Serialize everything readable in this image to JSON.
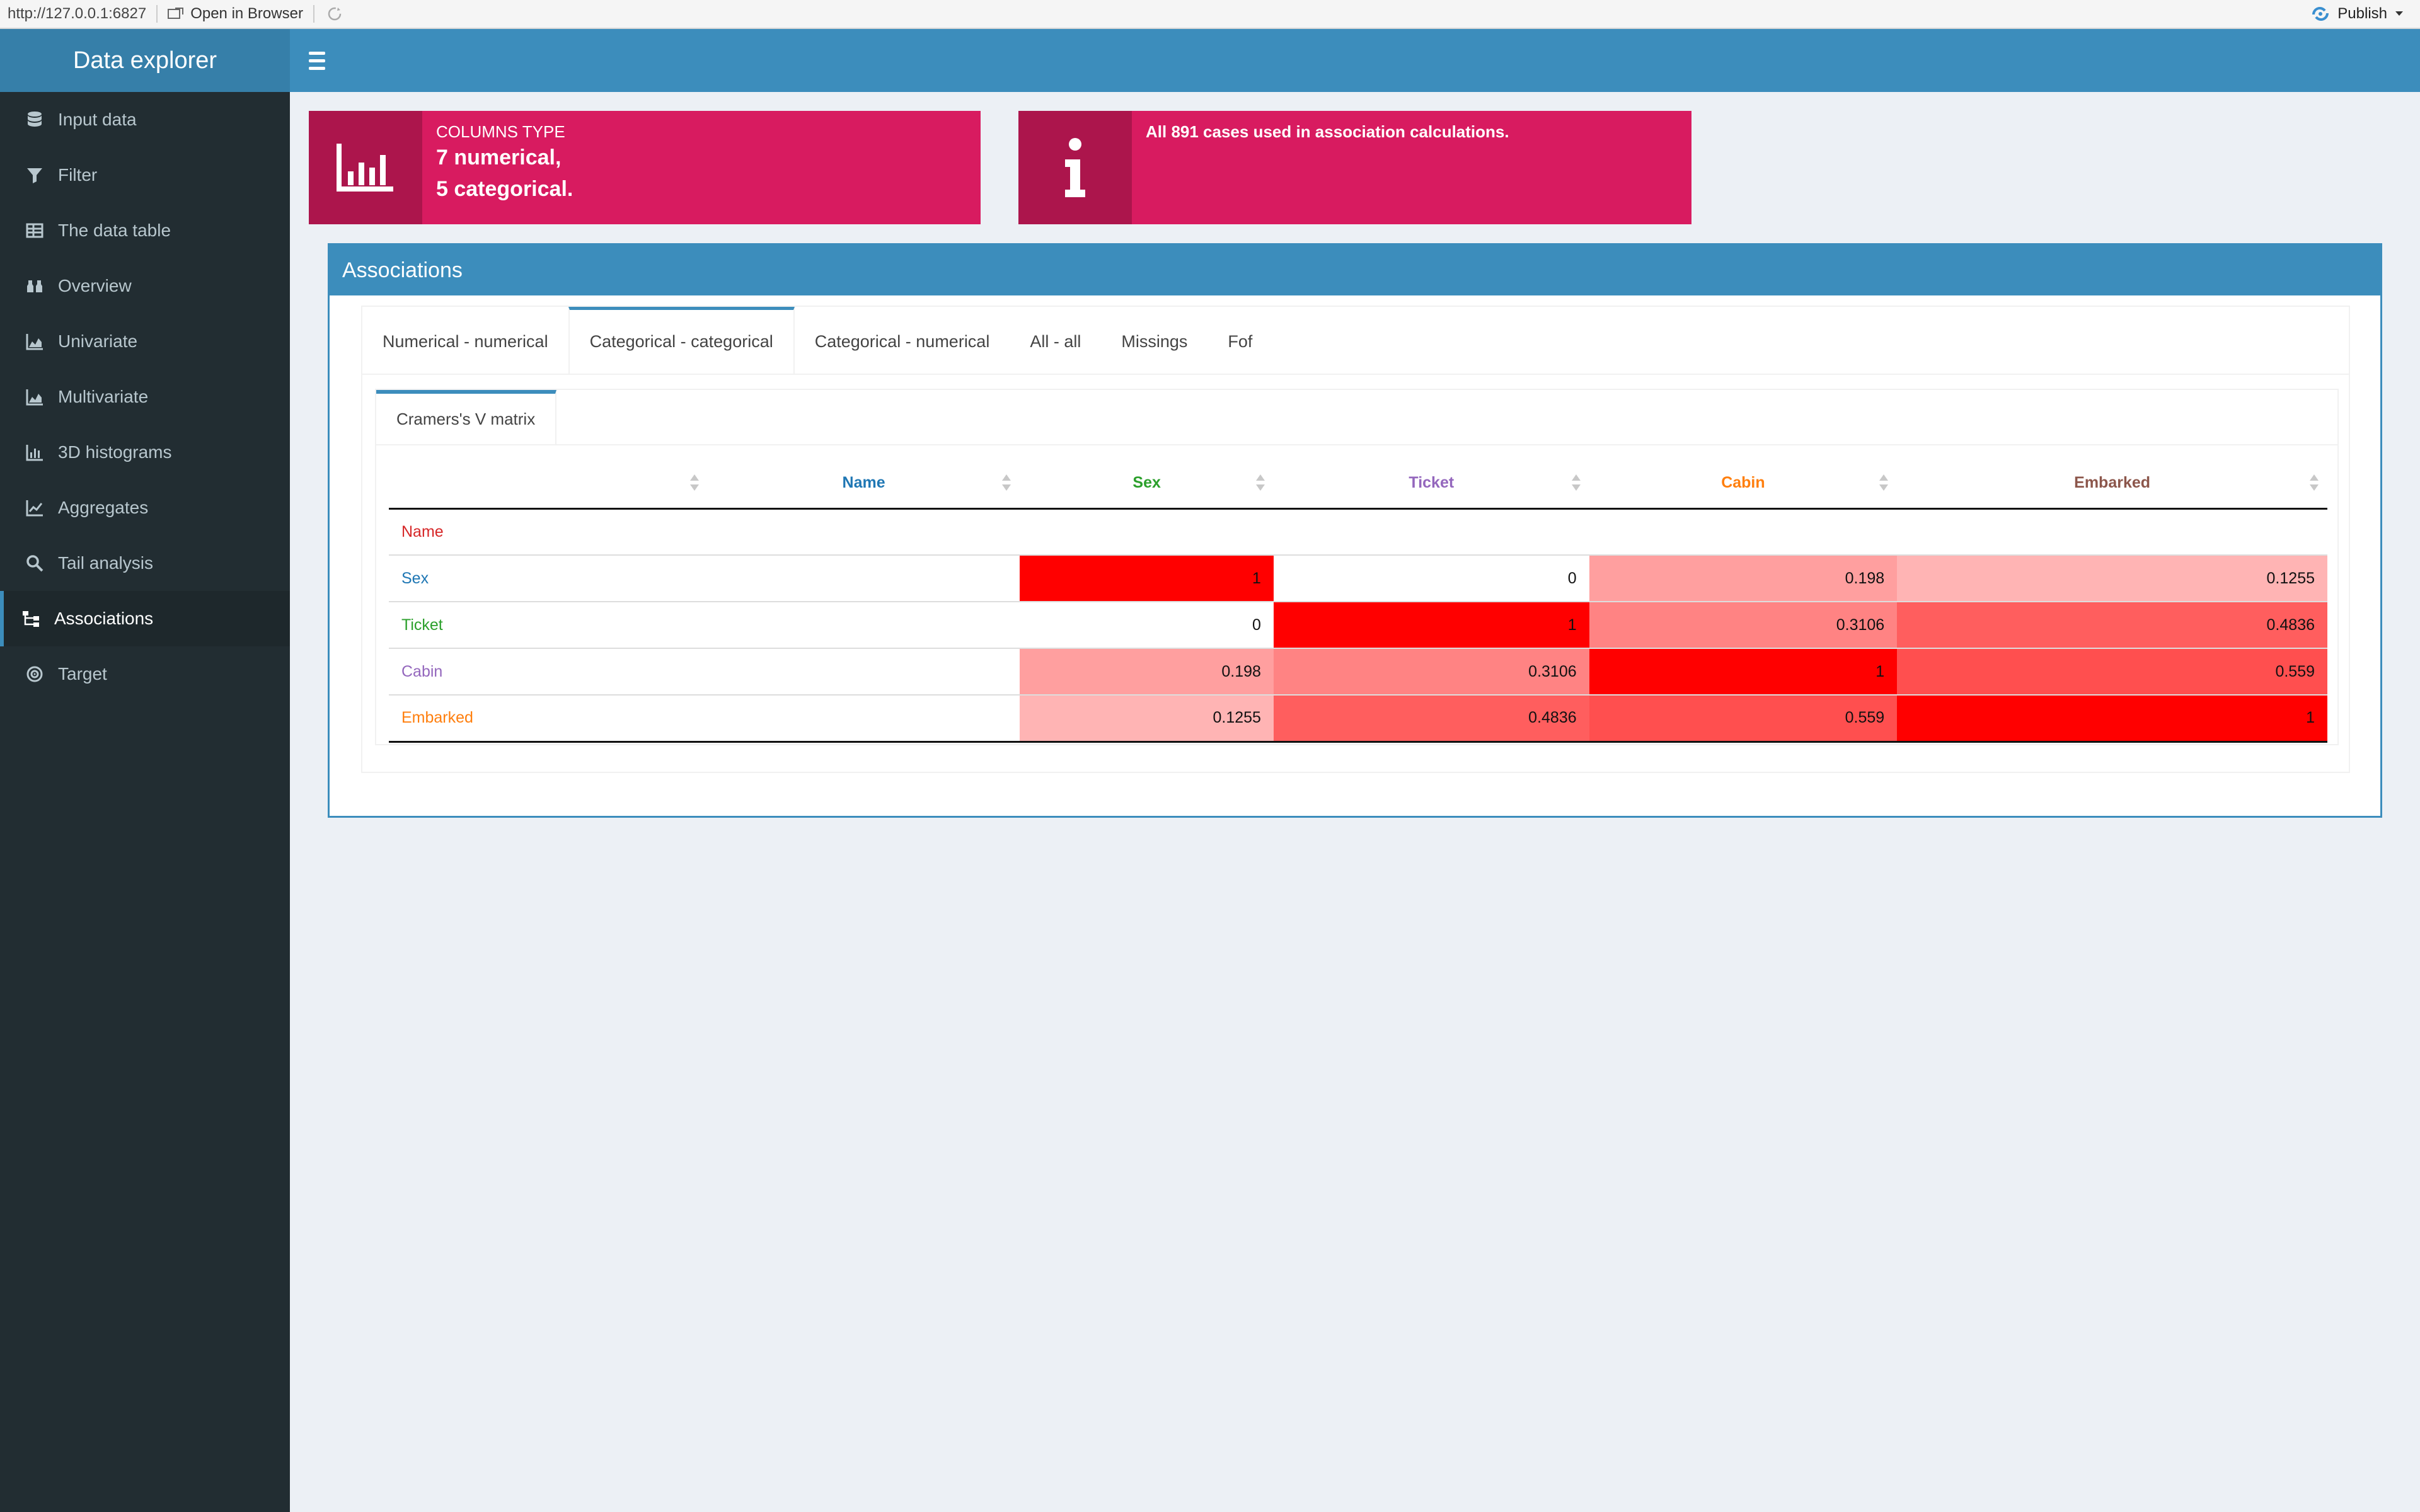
{
  "topbar": {
    "url": "http://127.0.0.1:6827",
    "open_in_browser": "Open in Browser",
    "publish": "Publish"
  },
  "sidebar": {
    "logo": "Data explorer",
    "items": [
      {
        "label": "Input data",
        "icon": "database-icon"
      },
      {
        "label": "Filter",
        "icon": "filter-icon"
      },
      {
        "label": "The data table",
        "icon": "table-icon"
      },
      {
        "label": "Overview",
        "icon": "binoculars-icon"
      },
      {
        "label": "Univariate",
        "icon": "area-chart-icon"
      },
      {
        "label": "Multivariate",
        "icon": "area-chart-icon"
      },
      {
        "label": "3D histograms",
        "icon": "bar-chart-icon"
      },
      {
        "label": "Aggregates",
        "icon": "line-chart-icon"
      },
      {
        "label": "Tail analysis",
        "icon": "search-icon"
      },
      {
        "label": "Associations",
        "icon": "sitemap-icon",
        "active": true
      },
      {
        "label": "Target",
        "icon": "bullseye-icon"
      }
    ]
  },
  "infoboxes": {
    "columns": {
      "label": "COLUMNS TYPE",
      "line1": "7 numerical,",
      "line2": "5 categorical."
    },
    "cases": {
      "text": "All 891 cases used in association calculations."
    }
  },
  "associations": {
    "title": "Associations",
    "tabs": [
      "Numerical - numerical",
      "Categorical - categorical",
      "Categorical - numerical",
      "All - all",
      "Missings",
      "Fof"
    ],
    "active_tab": 1,
    "subtab": "Cramers's V matrix",
    "table": {
      "headers": [
        {
          "label": "",
          "color": "#333333"
        },
        {
          "label": "Name",
          "color": "#1f77b4"
        },
        {
          "label": "Sex",
          "color": "#2ca02c"
        },
        {
          "label": "Ticket",
          "color": "#9467bd"
        },
        {
          "label": "Cabin",
          "color": "#ff7f0e"
        },
        {
          "label": "Embarked",
          "color": "#8c564b"
        }
      ],
      "rows": [
        {
          "name": "Name",
          "color": "#d62728",
          "values": [
            "",
            "",
            "",
            "",
            ""
          ]
        },
        {
          "name": "Sex",
          "color": "#1f77b4",
          "values": [
            "",
            "1",
            "0",
            "0.198",
            "0.1255"
          ]
        },
        {
          "name": "Ticket",
          "color": "#2ca02c",
          "values": [
            "",
            "0",
            "1",
            "0.3106",
            "0.4836"
          ]
        },
        {
          "name": "Cabin",
          "color": "#9467bd",
          "values": [
            "",
            "0.198",
            "0.3106",
            "1",
            "0.559"
          ]
        },
        {
          "name": "Embarked",
          "color": "#ff7f0e",
          "values": [
            "",
            "0.1255",
            "0.4836",
            "0.559",
            "1"
          ]
        }
      ]
    }
  }
}
